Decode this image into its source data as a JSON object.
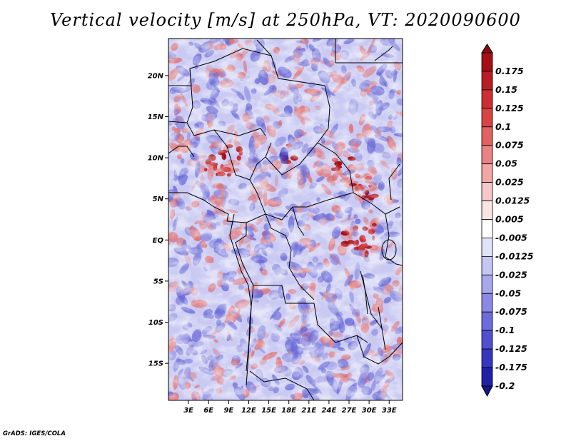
{
  "title": "Vertical velocity [m/s] at 250hPa, VT: 2020090600",
  "credit": "GrADS: IGES/COLA",
  "map": {
    "lat_range": [
      -19.5,
      24.5
    ],
    "lon_range": [
      0,
      35
    ],
    "lat_labels": [
      {
        "value": 20,
        "text": "20N"
      },
      {
        "value": 15,
        "text": "15N"
      },
      {
        "value": 10,
        "text": "10N"
      },
      {
        "value": 5,
        "text": "5N"
      },
      {
        "value": 0,
        "text": "EQ"
      },
      {
        "value": -5,
        "text": "5S"
      },
      {
        "value": -10,
        "text": "10S"
      },
      {
        "value": -15,
        "text": "15S"
      }
    ],
    "lon_labels": [
      {
        "value": 3,
        "text": "3E"
      },
      {
        "value": 6,
        "text": "6E"
      },
      {
        "value": 9,
        "text": "9E"
      },
      {
        "value": 12,
        "text": "12E"
      },
      {
        "value": 15,
        "text": "15E"
      },
      {
        "value": 18,
        "text": "18E"
      },
      {
        "value": 21,
        "text": "21E"
      },
      {
        "value": 24,
        "text": "24E"
      },
      {
        "value": 27,
        "text": "27E"
      },
      {
        "value": 30,
        "text": "30E"
      },
      {
        "value": 33,
        "text": "33E"
      }
    ]
  },
  "colorbar": {
    "levels": [
      {
        "label": "0.175",
        "color": "#a50f15"
      },
      {
        "label": "0.15",
        "color": "#b81d24"
      },
      {
        "label": "0.125",
        "color": "#cb2f33"
      },
      {
        "label": "0.1",
        "color": "#d84444"
      },
      {
        "label": "0.075",
        "color": "#e26262"
      },
      {
        "label": "0.05",
        "color": "#ea8383"
      },
      {
        "label": "0.025",
        "color": "#f2a6a6"
      },
      {
        "label": "0.0125",
        "color": "#f7c8c8"
      },
      {
        "label": "0.005",
        "color": "#fbe4e4"
      },
      {
        "label": "-0.005",
        "color": "#ffffff"
      },
      {
        "label": "-0.0125",
        "color": "#e2e2fb"
      },
      {
        "label": "-0.025",
        "color": "#c6c6f5"
      },
      {
        "label": "-0.05",
        "color": "#a8a8ee"
      },
      {
        "label": "-0.075",
        "color": "#8a8ae6"
      },
      {
        "label": "-0.1",
        "color": "#6c6cdc"
      },
      {
        "label": "-0.125",
        "color": "#4f4fd0"
      },
      {
        "label": "-0.175",
        "color": "#3636c0"
      },
      {
        "label": "-0.2",
        "color": "#2020a8"
      }
    ],
    "top_arrow_color": "#8b0a10",
    "bottom_arrow_color": "#14148c"
  },
  "field_colors": {
    "positive": "#e07070",
    "negative": "#6a6ad8",
    "neutral": "#ffffff"
  }
}
